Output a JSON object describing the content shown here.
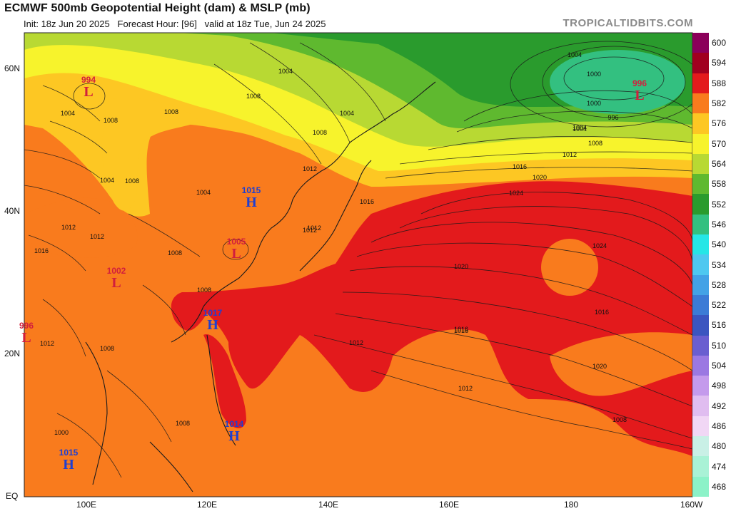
{
  "header": {
    "title": "ECMWF 500mb Geopotential Height (dam) & MSLP (mb)",
    "init": "Init: 18z Jun 20 2025",
    "forecast_hour": "Forecast Hour: [96]",
    "valid": "valid at 18z Tue, Jun 24 2025",
    "brand": "TROPICALTIDBITS.COM"
  },
  "axes": {
    "lat_labels": [
      "60N",
      "40N",
      "20N",
      "EQ"
    ],
    "lon_labels": [
      "100E",
      "120E",
      "140E",
      "160E",
      "180",
      "160W"
    ]
  },
  "colorbar": {
    "levels": [
      "600",
      "594",
      "588",
      "582",
      "576",
      "570",
      "564",
      "558",
      "552",
      "546",
      "540",
      "534",
      "528",
      "522",
      "516",
      "510",
      "504",
      "498",
      "492",
      "486",
      "480",
      "474",
      "468"
    ],
    "colors": [
      "#8b005a",
      "#a1001f",
      "#e31a1c",
      "#f97b1d",
      "#fdc723",
      "#f7f32c",
      "#b8d933",
      "#5fb92f",
      "#2a9b2d",
      "#33c080",
      "#26e6e6",
      "#4ec8f0",
      "#43a2e6",
      "#3c7bd6",
      "#3b55c0",
      "#6a5ed0",
      "#9b78e2",
      "#c49aec",
      "#e0bdf0",
      "#f1d7f5",
      "#c9f0e6",
      "#a9f2d6",
      "#8cf2c8"
    ]
  },
  "pressure_centers": [
    {
      "type": "L",
      "value": "994",
      "color": "#d21f3c"
    },
    {
      "type": "L",
      "value": "996",
      "color": "#d21f3c"
    },
    {
      "type": "H",
      "value": "1015",
      "color": "#1f3fd0"
    },
    {
      "type": "L",
      "value": "1005",
      "color": "#d21f3c"
    },
    {
      "type": "L",
      "value": "1002",
      "color": "#d21f3c"
    },
    {
      "type": "L",
      "value": "996",
      "color": "#d21f3c"
    },
    {
      "type": "H",
      "value": "1017",
      "color": "#1f3fd0"
    },
    {
      "type": "H",
      "value": "1014",
      "color": "#1f3fd0"
    },
    {
      "type": "H",
      "value": "1015",
      "color": "#1f3fd0"
    }
  ],
  "isobar_labels": [
    "1004",
    "1008",
    "1004",
    "1000",
    "1004",
    "1008",
    "1004",
    "1012",
    "1008",
    "1012",
    "1016",
    "1020",
    "1024",
    "1024",
    "1020",
    "1016",
    "1016",
    "1012",
    "1012",
    "1008",
    "1008",
    "1000",
    "1004",
    "1008",
    "1012",
    "1016",
    "1012",
    "1008",
    "1008",
    "1004",
    "1012",
    "1016",
    "1012",
    "1008",
    "996",
    "1000",
    "1004",
    "1008",
    "1004",
    "1008",
    "1012",
    "1020",
    "1016"
  ]
}
